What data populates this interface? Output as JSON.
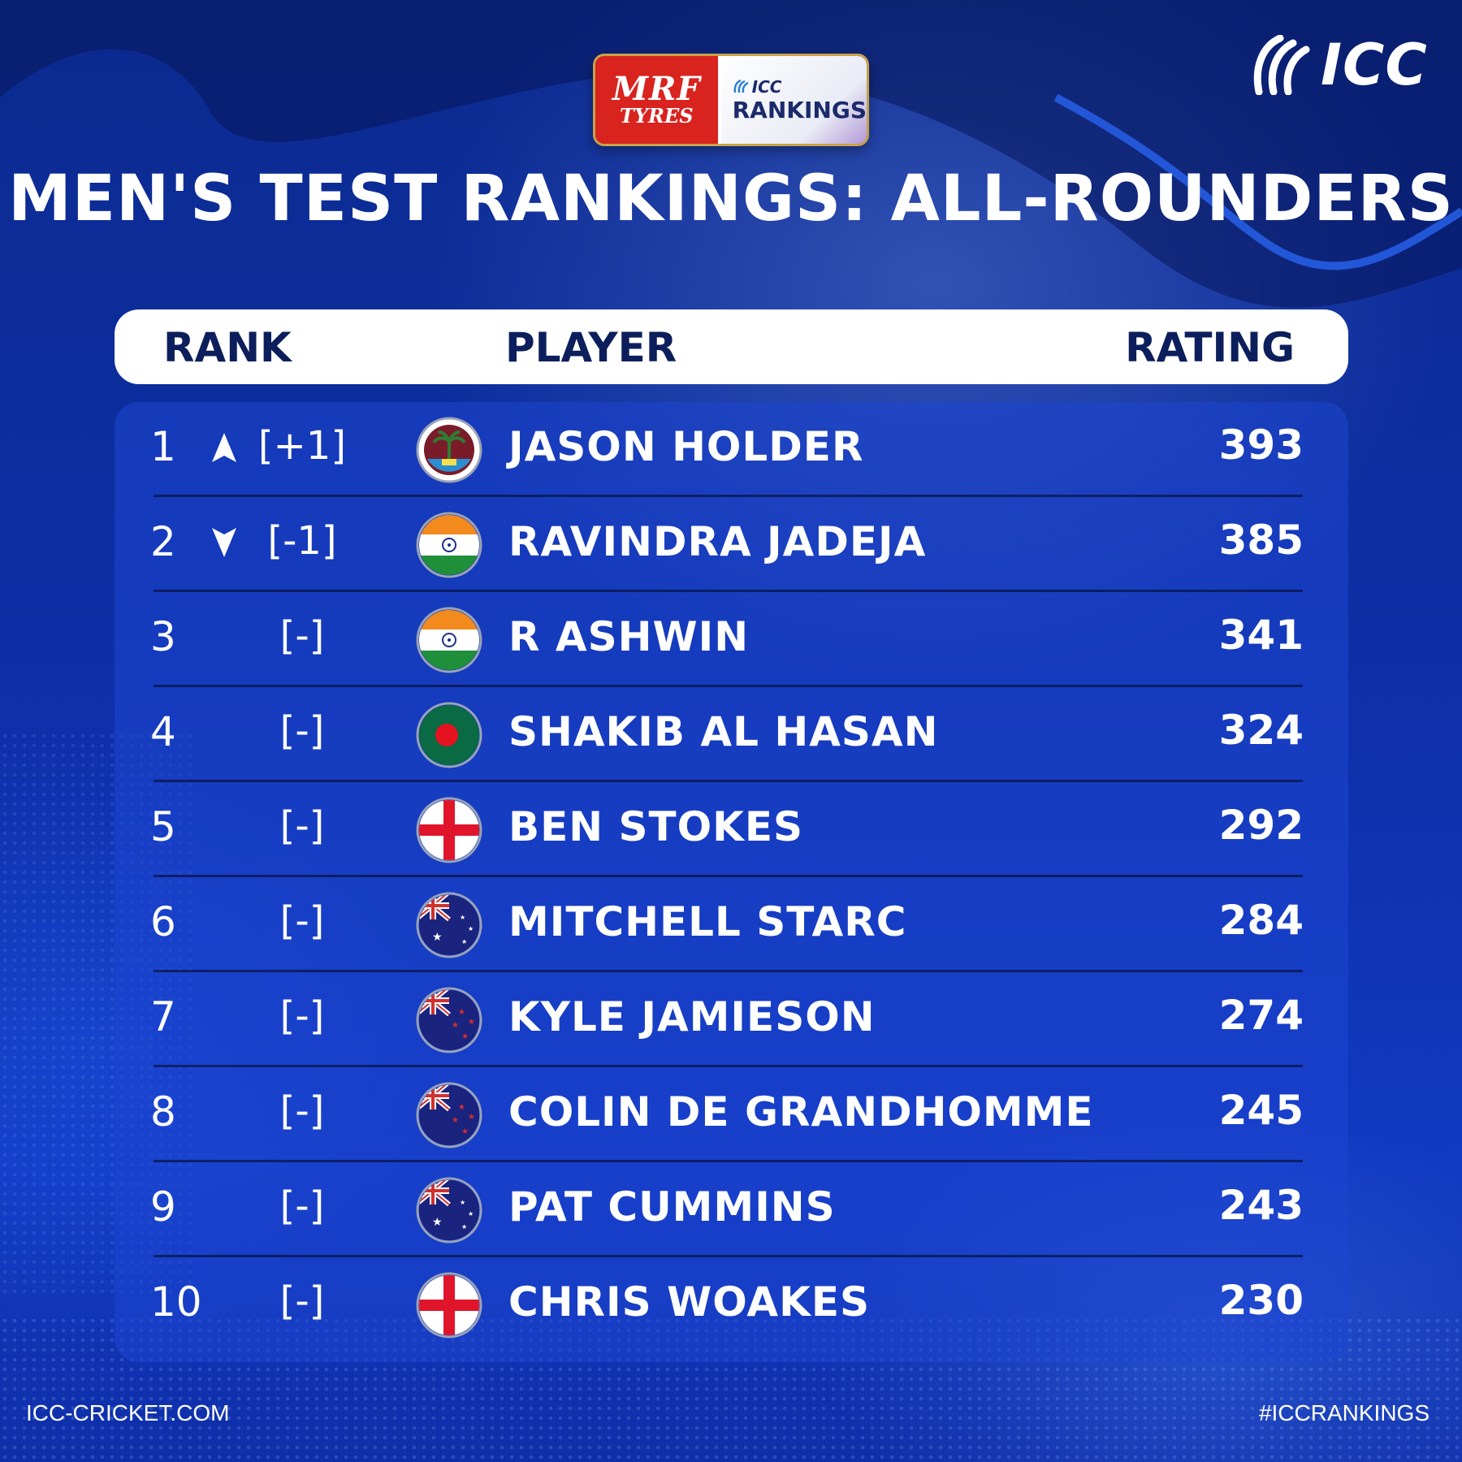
{
  "sponsor": {
    "brand_line1": "MRF",
    "brand_line2": "TYRES",
    "badge_small": "ICC",
    "badge_big": "RANKINGS"
  },
  "logo": {
    "text": "ICC"
  },
  "title": "MEN'S TEST RANKINGS: ALL-ROUNDERS",
  "columns": {
    "rank": "RANK",
    "player": "PLAYER",
    "rating": "RATING"
  },
  "rows": [
    {
      "rank": "1",
      "trend": "up",
      "move": "[+1]",
      "flag": "west-indies",
      "player": "JASON HOLDER",
      "rating": "393"
    },
    {
      "rank": "2",
      "trend": "down",
      "move": "[-1]",
      "flag": "india",
      "player": "RAVINDRA JADEJA",
      "rating": "385"
    },
    {
      "rank": "3",
      "trend": "none",
      "move": "[-]",
      "flag": "india",
      "player": "R ASHWIN",
      "rating": "341"
    },
    {
      "rank": "4",
      "trend": "none",
      "move": "[-]",
      "flag": "bangladesh",
      "player": "SHAKIB AL HASAN",
      "rating": "324"
    },
    {
      "rank": "5",
      "trend": "none",
      "move": "[-]",
      "flag": "england",
      "player": "BEN STOKES",
      "rating": "292"
    },
    {
      "rank": "6",
      "trend": "none",
      "move": "[-]",
      "flag": "australia",
      "player": "MITCHELL STARC",
      "rating": "284"
    },
    {
      "rank": "7",
      "trend": "none",
      "move": "[-]",
      "flag": "new-zealand",
      "player": "KYLE JAMIESON",
      "rating": "274"
    },
    {
      "rank": "8",
      "trend": "none",
      "move": "[-]",
      "flag": "new-zealand",
      "player": "COLIN DE GRANDHOMME",
      "rating": "245"
    },
    {
      "rank": "9",
      "trend": "none",
      "move": "[-]",
      "flag": "australia",
      "player": "PAT CUMMINS",
      "rating": "243"
    },
    {
      "rank": "10",
      "trend": "none",
      "move": "[-]",
      "flag": "england",
      "player": "CHRIS WOAKES",
      "rating": "230"
    }
  ],
  "footer": {
    "left": "ICC-CRICKET.COM",
    "right": "#ICCRANKINGS"
  },
  "colors": {
    "background": "#0c2a9c",
    "header_text": "#0c1f5c",
    "sponsor_red": "#d8231f"
  }
}
